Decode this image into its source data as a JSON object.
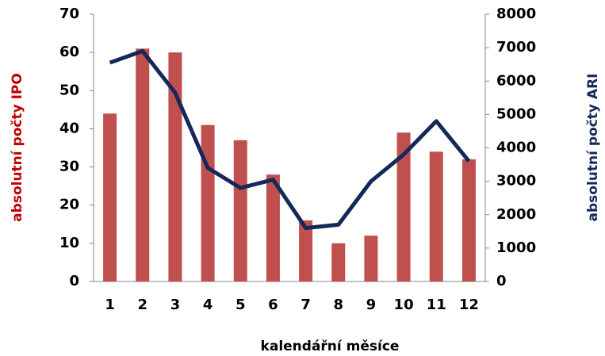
{
  "chart_data": {
    "type": "bar",
    "categories": [
      "1",
      "2",
      "3",
      "4",
      "5",
      "6",
      "7",
      "8",
      "9",
      "10",
      "11",
      "12"
    ],
    "series": [
      {
        "name": "absolutní počty IPO",
        "type": "bar",
        "axis": "y",
        "color": "#c0504d",
        "values": [
          44,
          61,
          60,
          41,
          37,
          28,
          16,
          10,
          12,
          39,
          34,
          32
        ]
      },
      {
        "name": "absolutní počty ARI",
        "type": "line",
        "axis": "y2",
        "color": "#14285a",
        "values": [
          6550,
          6900,
          5650,
          3400,
          2800,
          3050,
          1600,
          1700,
          3000,
          3800,
          4800,
          3600
        ]
      }
    ],
    "x_label": "kalendářní měsíce",
    "y_label": "absolutní počty IPO",
    "y2_label": "absolutní počty ARI",
    "ylim": [
      0,
      70
    ],
    "yticks": [
      0,
      10,
      20,
      30,
      40,
      50,
      60,
      70
    ],
    "y2lim": [
      0,
      8000
    ],
    "y2ticks": [
      0,
      1000,
      2000,
      3000,
      4000,
      5000,
      6000,
      7000,
      8000
    ],
    "grid": false
  }
}
